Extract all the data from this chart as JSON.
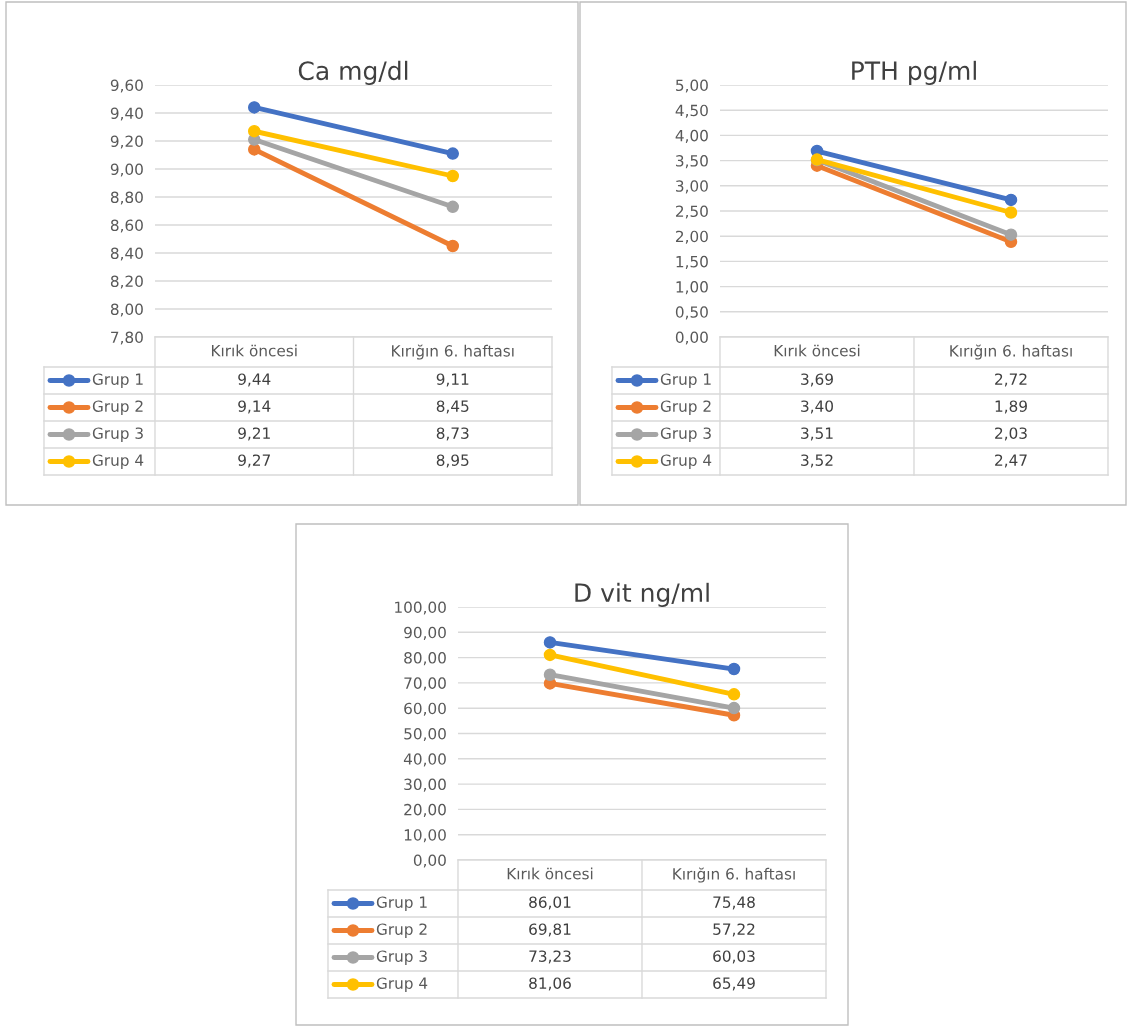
{
  "chart_data": [
    {
      "type": "line",
      "title": "Ca mg/dl",
      "categories": [
        "Kırık öncesi",
        "Kırığın 6. haftası"
      ],
      "series": [
        {
          "name": "Grup 1",
          "color": "#4472c4",
          "values": [
            9.44,
            9.11
          ],
          "value_labels": [
            "9,44",
            "9,11"
          ]
        },
        {
          "name": "Grup 2",
          "color": "#ed7d31",
          "values": [
            9.14,
            8.45
          ],
          "value_labels": [
            "9,14",
            "8,45"
          ]
        },
        {
          "name": "Grup 3",
          "color": "#a5a5a5",
          "values": [
            9.21,
            8.73
          ],
          "value_labels": [
            "9,21",
            "8,73"
          ]
        },
        {
          "name": "Grup 4",
          "color": "#ffc000",
          "values": [
            9.27,
            8.95
          ],
          "value_labels": [
            "9,27",
            "8,95"
          ]
        }
      ],
      "ylim": [
        7.8,
        9.6
      ],
      "yticks": [
        {
          "value": 7.8,
          "label": "7,80"
        },
        {
          "value": 8.0,
          "label": "8,00"
        },
        {
          "value": 8.2,
          "label": "8,20"
        },
        {
          "value": 8.4,
          "label": "8,40"
        },
        {
          "value": 8.6,
          "label": "8,60"
        },
        {
          "value": 8.8,
          "label": "8,80"
        },
        {
          "value": 9.0,
          "label": "9,00"
        },
        {
          "value": 9.2,
          "label": "9,20"
        },
        {
          "value": 9.4,
          "label": "9,40"
        },
        {
          "value": 9.6,
          "label": "9,60"
        }
      ],
      "grid": "y",
      "legend": "bottom",
      "marker": "circle",
      "line_style": "solid"
    },
    {
      "type": "line",
      "title": "PTH pg/ml",
      "categories": [
        "Kırık öncesi",
        "Kırığın 6. haftası"
      ],
      "series": [
        {
          "name": "Grup 1",
          "color": "#4472c4",
          "values": [
            3.69,
            2.72
          ],
          "value_labels": [
            "3,69",
            "2,72"
          ]
        },
        {
          "name": "Grup 2",
          "color": "#ed7d31",
          "values": [
            3.4,
            1.89
          ],
          "value_labels": [
            "3,40",
            "1,89"
          ]
        },
        {
          "name": "Grup 3",
          "color": "#a5a5a5",
          "values": [
            3.51,
            2.03
          ],
          "value_labels": [
            "3,51",
            "2,03"
          ]
        },
        {
          "name": "Grup 4",
          "color": "#ffc000",
          "values": [
            3.52,
            2.47
          ],
          "value_labels": [
            "3,52",
            "2,47"
          ]
        }
      ],
      "ylim": [
        0,
        5
      ],
      "yticks": [
        {
          "value": 0,
          "label": "0,00"
        },
        {
          "value": 0.5,
          "label": "0,50"
        },
        {
          "value": 1.0,
          "label": "1,00"
        },
        {
          "value": 1.5,
          "label": "1,50"
        },
        {
          "value": 2.0,
          "label": "2,00"
        },
        {
          "value": 2.5,
          "label": "2,50"
        },
        {
          "value": 3.0,
          "label": "3,00"
        },
        {
          "value": 3.5,
          "label": "3,50"
        },
        {
          "value": 4.0,
          "label": "4,00"
        },
        {
          "value": 4.5,
          "label": "4,50"
        },
        {
          "value": 5.0,
          "label": "5,00"
        }
      ],
      "grid": "y",
      "legend": "bottom",
      "marker": "circle",
      "line_style": "solid"
    },
    {
      "type": "line",
      "title": "D vit ng/ml",
      "categories": [
        "Kırık öncesi",
        "Kırığın 6. haftası"
      ],
      "series": [
        {
          "name": "Grup 1",
          "color": "#4472c4",
          "values": [
            86.01,
            75.48
          ],
          "value_labels": [
            "86,01",
            "75,48"
          ]
        },
        {
          "name": "Grup 2",
          "color": "#ed7d31",
          "values": [
            69.81,
            57.22
          ],
          "value_labels": [
            "69,81",
            "57,22"
          ]
        },
        {
          "name": "Grup 3",
          "color": "#a5a5a5",
          "values": [
            73.23,
            60.03
          ],
          "value_labels": [
            "73,23",
            "60,03"
          ]
        },
        {
          "name": "Grup 4",
          "color": "#ffc000",
          "values": [
            81.06,
            65.49
          ],
          "value_labels": [
            "81,06",
            "65,49"
          ]
        }
      ],
      "ylim": [
        0,
        100
      ],
      "yticks": [
        {
          "value": 0,
          "label": "0,00"
        },
        {
          "value": 10,
          "label": "10,00"
        },
        {
          "value": 20,
          "label": "20,00"
        },
        {
          "value": 30,
          "label": "30,00"
        },
        {
          "value": 40,
          "label": "40,00"
        },
        {
          "value": 50,
          "label": "50,00"
        },
        {
          "value": 60,
          "label": "60,00"
        },
        {
          "value": 70,
          "label": "70,00"
        },
        {
          "value": 80,
          "label": "80,00"
        },
        {
          "value": 90,
          "label": "90,00"
        },
        {
          "value": 100,
          "label": "100,00"
        }
      ],
      "grid": "y",
      "legend": "bottom",
      "marker": "circle",
      "line_style": "solid"
    }
  ]
}
